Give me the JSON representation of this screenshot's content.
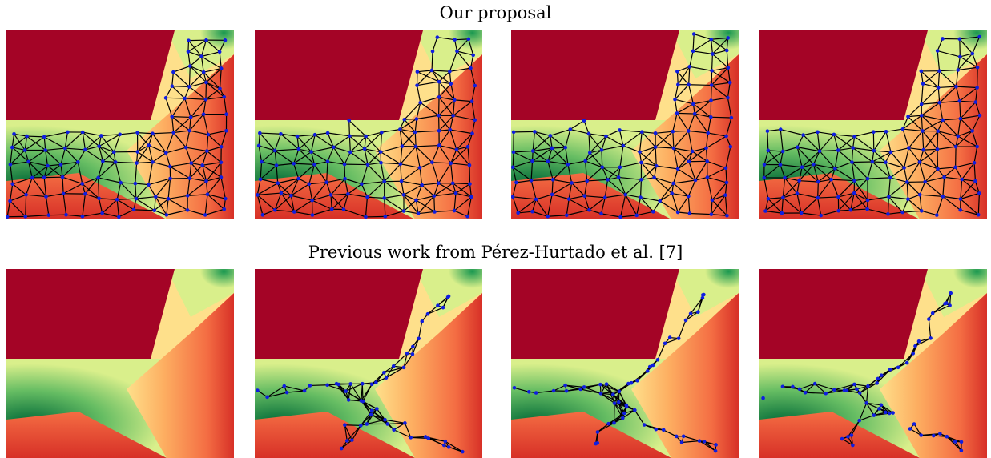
{
  "figure": {
    "top_heading": "Our proposal",
    "bottom_heading": "Previous work from Pérez-Hurtado et al. [7]"
  },
  "colors": {
    "obstacle": "#a40426",
    "near": "#006837",
    "mid": "#fee08b",
    "far": "#d73027",
    "edge": "#000000",
    "node": "#0f1ee0"
  },
  "rows": [
    {
      "name": "our-proposal",
      "panels": [
        {
          "stage": 1,
          "graph": "dense-uniform"
        },
        {
          "stage": 2,
          "graph": "dense-uniform"
        },
        {
          "stage": 3,
          "graph": "dense-uniform"
        },
        {
          "stage": 4,
          "graph": "dense-uniform"
        }
      ]
    },
    {
      "name": "previous-work",
      "panels": [
        {
          "stage": 1,
          "graph": "none"
        },
        {
          "stage": 2,
          "graph": "sparse-skeleton"
        },
        {
          "stage": 3,
          "graph": "sparse-skeleton"
        },
        {
          "stage": 4,
          "graph": "sparse-skeleton"
        }
      ]
    }
  ]
}
